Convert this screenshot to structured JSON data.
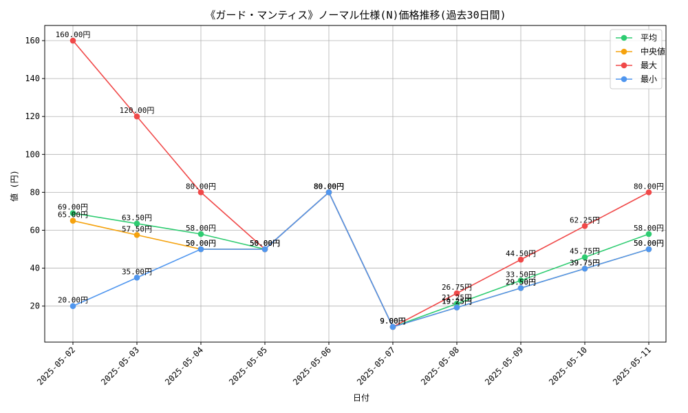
{
  "chart_data": {
    "type": "line",
    "title": "《ガード・マンティス》ノーマル仕様(N)価格推移(過去30日間)",
    "xlabel": "日付",
    "ylabel": "値 (円)",
    "categories": [
      "2025-05-02",
      "2025-05-03",
      "2025-05-04",
      "2025-05-05",
      "2025-05-06",
      "2025-05-07",
      "2025-05-08",
      "2025-05-09",
      "2025-05-10",
      "2025-05-11"
    ],
    "ylim": [
      1,
      168
    ],
    "yticks": [
      20,
      40,
      60,
      80,
      100,
      120,
      140,
      160
    ],
    "grid": true,
    "legend_position": "top-right",
    "value_suffix": "円",
    "series": [
      {
        "name": "平均",
        "color": "#2ecc71",
        "values": [
          69.0,
          63.5,
          58.0,
          50.0,
          80.0,
          9.0,
          21.25,
          33.5,
          45.75,
          58.0
        ]
      },
      {
        "name": "中央値",
        "color": "#f5a20d",
        "values": [
          65.0,
          57.5,
          50.0,
          50.0,
          80.0,
          9.0,
          19.25,
          29.5,
          39.75,
          50.0
        ]
      },
      {
        "name": "最大",
        "color": "#f04848",
        "values": [
          160.0,
          120.0,
          80.0,
          50.0,
          80.0,
          9.0,
          26.75,
          44.5,
          62.25,
          80.0
        ]
      },
      {
        "name": "最小",
        "color": "#4f96ef",
        "values": [
          20.0,
          35.0,
          50.0,
          50.0,
          80.0,
          9.0,
          19.25,
          29.5,
          39.75,
          50.0
        ]
      }
    ]
  }
}
